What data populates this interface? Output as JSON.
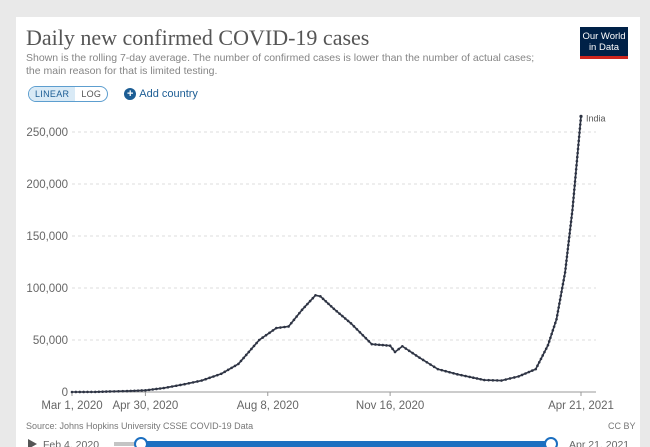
{
  "header": {
    "title": "Daily new confirmed COVID-19 cases",
    "subtitle": "Shown is the rolling 7-day average. The number of confirmed cases is lower than the number of actual cases; the main reason for that is limited testing.",
    "logo_line1": "Our World",
    "logo_line2": "in Data"
  },
  "controls": {
    "linear_label": "LINEAR",
    "log_label": "LOG",
    "active_scale": "linear",
    "add_country_label": "Add country"
  },
  "footer": {
    "source": "Source: Johns Hopkins University CSSE COVID-19 Data",
    "license": "CC BY"
  },
  "timeline": {
    "start_label": "Feb 4, 2020",
    "end_label": "Apr 21, 2021"
  },
  "colors": {
    "line": "#2e3444",
    "grid": "#dddddd",
    "accent": "#1c6fc0",
    "logo_bg": "#002147",
    "logo_red": "#ce261e"
  },
  "chart_data": {
    "type": "line",
    "title": "Daily new confirmed COVID-19 cases",
    "x_type": "date",
    "x_ticks": [
      "Mar 1, 2020",
      "Apr 30, 2020",
      "Aug 8, 2020",
      "Nov 16, 2020",
      "Apr 21, 2021"
    ],
    "x_range": [
      "2020-03-01",
      "2021-04-21"
    ],
    "y_ticks": [
      "0",
      "50,000",
      "100,000",
      "150,000",
      "200,000",
      "250,000"
    ],
    "ylim": [
      0,
      250000
    ],
    "grid": "horizontal dashed",
    "legend": "inline label at line end",
    "series": [
      {
        "name": "India",
        "points": [
          [
            "2020-03-01",
            0
          ],
          [
            "2020-03-20",
            100
          ],
          [
            "2020-04-01",
            500
          ],
          [
            "2020-04-15",
            900
          ],
          [
            "2020-04-30",
            1600
          ],
          [
            "2020-05-15",
            3800
          ],
          [
            "2020-06-01",
            7500
          ],
          [
            "2020-06-15",
            11000
          ],
          [
            "2020-07-01",
            17500
          ],
          [
            "2020-07-15",
            27000
          ],
          [
            "2020-08-01",
            50000
          ],
          [
            "2020-08-15",
            61500
          ],
          [
            "2020-08-25",
            63000
          ],
          [
            "2020-09-05",
            79000
          ],
          [
            "2020-09-16",
            93000
          ],
          [
            "2020-09-20",
            92000
          ],
          [
            "2020-10-01",
            80000
          ],
          [
            "2020-10-15",
            66000
          ],
          [
            "2020-11-01",
            46000
          ],
          [
            "2020-11-16",
            44500
          ],
          [
            "2020-11-20",
            38500
          ],
          [
            "2020-11-26",
            44000
          ],
          [
            "2020-12-10",
            33000
          ],
          [
            "2020-12-25",
            22000
          ],
          [
            "2021-01-10",
            17000
          ],
          [
            "2021-01-20",
            14500
          ],
          [
            "2021-02-01",
            11500
          ],
          [
            "2021-02-15",
            11000
          ],
          [
            "2021-03-01",
            15000
          ],
          [
            "2021-03-15",
            22000
          ],
          [
            "2021-03-25",
            45000
          ],
          [
            "2021-04-01",
            70000
          ],
          [
            "2021-04-08",
            115000
          ],
          [
            "2021-04-14",
            175000
          ],
          [
            "2021-04-21",
            265000
          ]
        ]
      }
    ]
  }
}
